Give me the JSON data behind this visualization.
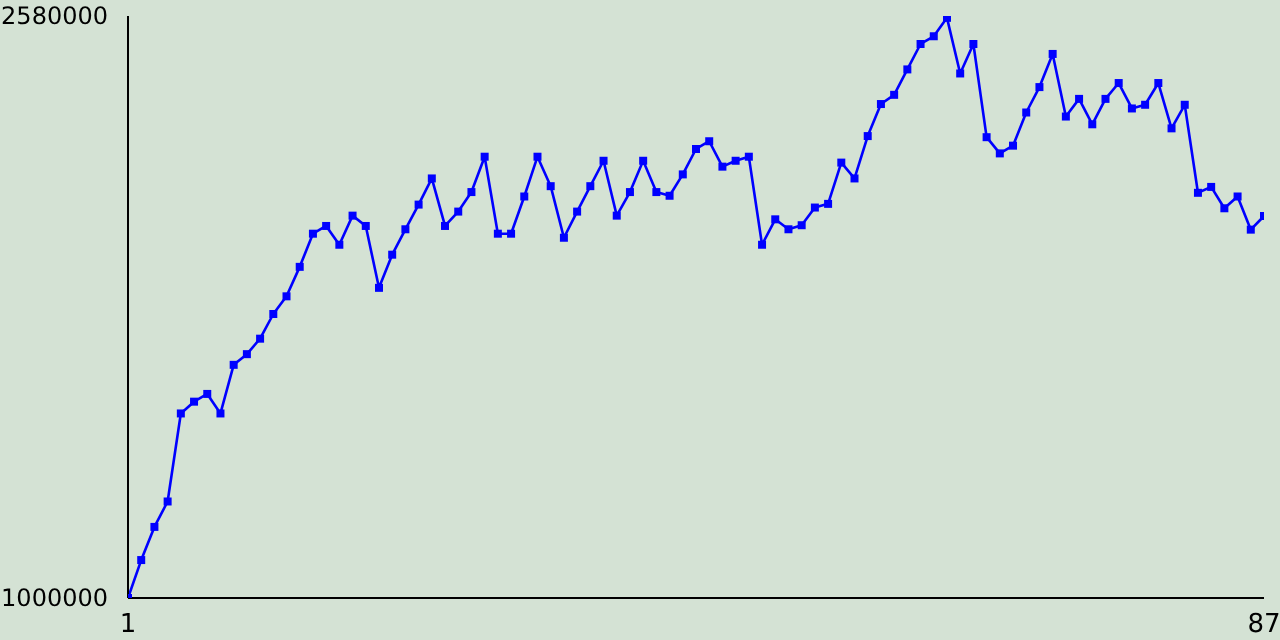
{
  "chart_data": {
    "type": "line",
    "x": [
      1,
      2,
      3,
      4,
      5,
      6,
      7,
      8,
      9,
      10,
      11,
      12,
      13,
      14,
      15,
      16,
      17,
      18,
      19,
      20,
      21,
      22,
      23,
      24,
      25,
      26,
      27,
      28,
      29,
      30,
      31,
      32,
      33,
      34,
      35,
      36,
      37,
      38,
      39,
      40,
      41,
      42,
      43,
      44,
      45,
      46,
      47,
      48,
      49,
      50,
      51,
      52,
      53,
      54,
      55,
      56,
      57,
      58,
      59,
      60,
      61,
      62,
      63,
      64,
      65,
      66,
      67,
      68,
      69,
      70,
      71,
      72,
      73,
      74,
      75,
      76,
      77,
      78,
      79,
      80,
      81,
      82,
      83,
      84,
      85,
      86,
      87
    ],
    "series": [
      {
        "color": "#0000ff",
        "values": [
          1000000,
          1103000,
          1193000,
          1262000,
          1501000,
          1533000,
          1554000,
          1501000,
          1633000,
          1662000,
          1704000,
          1771000,
          1819000,
          1899000,
          1989000,
          2010000,
          1959000,
          2038000,
          2010000,
          1842000,
          1932000,
          2001000,
          2068000,
          2139000,
          2010000,
          2049000,
          2102000,
          2198000,
          1989000,
          1989000,
          2090000,
          2198000,
          2118000,
          1978000,
          2049000,
          2118000,
          2187000,
          2038000,
          2102000,
          2187000,
          2102000,
          2092000,
          2150000,
          2219000,
          2240000,
          2171000,
          2187000,
          2198000,
          1959000,
          2028000,
          2001000,
          2012000,
          2060000,
          2070000,
          2182000,
          2139000,
          2254000,
          2341000,
          2366000,
          2435000,
          2504000,
          2525000,
          2575000,
          2424000,
          2504000,
          2251000,
          2207000,
          2228000,
          2318000,
          2387000,
          2477000,
          2307000,
          2355000,
          2286000,
          2355000,
          2398000,
          2329000,
          2339000,
          2398000,
          2275000,
          2339000,
          2100000,
          2116000,
          2058000,
          2090000,
          2000000,
          2037000
        ]
      }
    ],
    "xlim": [
      1,
      87
    ],
    "xticks": [
      1,
      87
    ],
    "ylim": [
      1000000,
      2580000
    ],
    "yticks": [
      1000000,
      2580000
    ],
    "grid": false,
    "legend": false,
    "marker": "square",
    "line_style": "solid"
  }
}
